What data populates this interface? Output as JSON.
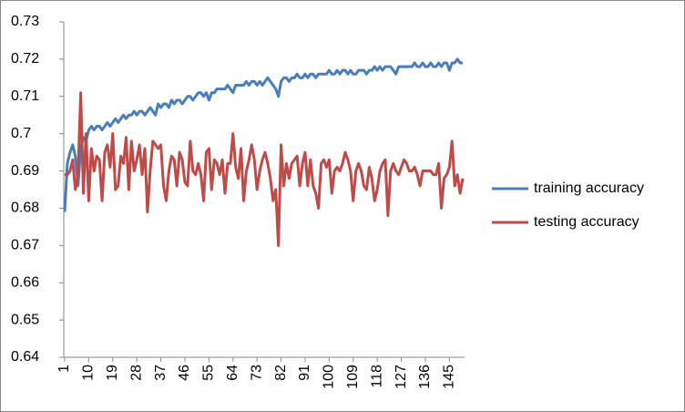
{
  "chart_data": {
    "type": "line",
    "categories": [
      1,
      null,
      null,
      null,
      null,
      null,
      null,
      null,
      null,
      10,
      null,
      null,
      null,
      null,
      null,
      null,
      null,
      null,
      19,
      null,
      null,
      null,
      null,
      null,
      null,
      null,
      null,
      28,
      null,
      null,
      null,
      null,
      null,
      null,
      null,
      null,
      37,
      null,
      null,
      null,
      null,
      null,
      null,
      null,
      null,
      46,
      null,
      null,
      null,
      null,
      null,
      null,
      null,
      null,
      55,
      null,
      null,
      null,
      null,
      null,
      null,
      null,
      null,
      64,
      null,
      null,
      null,
      null,
      null,
      null,
      null,
      null,
      73,
      null,
      null,
      null,
      null,
      null,
      null,
      null,
      null,
      82,
      null,
      null,
      null,
      null,
      null,
      null,
      null,
      null,
      91,
      null,
      null,
      null,
      null,
      null,
      null,
      null,
      null,
      100,
      null,
      null,
      null,
      null,
      null,
      null,
      null,
      null,
      109,
      null,
      null,
      null,
      null,
      null,
      null,
      null,
      null,
      118,
      null,
      null,
      null,
      null,
      null,
      null,
      null,
      null,
      127,
      null,
      null,
      null,
      null,
      null,
      null,
      null,
      null,
      136,
      null,
      null,
      null,
      null,
      null,
      null,
      null,
      null,
      145,
      null,
      null,
      null,
      null,
      null
    ],
    "series": [
      {
        "name": "training accuracy",
        "color": "#4a7ebb",
        "values": [
          0.679,
          0.692,
          0.695,
          0.697,
          0.694,
          0.686,
          0.696,
          0.699,
          0.698,
          0.701,
          0.702,
          0.701,
          0.702,
          0.702,
          0.701,
          0.702,
          0.703,
          0.702,
          0.703,
          0.704,
          0.703,
          0.704,
          0.705,
          0.704,
          0.705,
          0.705,
          0.706,
          0.705,
          0.706,
          0.706,
          0.705,
          0.706,
          0.707,
          0.706,
          0.705,
          0.708,
          0.707,
          0.708,
          0.708,
          0.707,
          0.709,
          0.708,
          0.709,
          0.709,
          0.708,
          0.709,
          0.71,
          0.71,
          0.709,
          0.71,
          0.711,
          0.711,
          0.71,
          0.711,
          0.709,
          0.711,
          0.711,
          0.712,
          0.712,
          0.712,
          0.712,
          0.713,
          0.712,
          0.711,
          0.713,
          0.713,
          0.713,
          0.713,
          0.714,
          0.713,
          0.714,
          0.714,
          0.713,
          0.714,
          0.713,
          0.714,
          0.715,
          0.714,
          0.713,
          0.712,
          0.71,
          0.714,
          0.715,
          0.715,
          0.714,
          0.715,
          0.715,
          0.716,
          0.715,
          0.715,
          0.716,
          0.715,
          0.716,
          0.716,
          0.715,
          0.716,
          0.716,
          0.716,
          0.716,
          0.717,
          0.716,
          0.716,
          0.717,
          0.716,
          0.717,
          0.717,
          0.716,
          0.717,
          0.716,
          0.716,
          0.717,
          0.717,
          0.717,
          0.716,
          0.717,
          0.717,
          0.718,
          0.717,
          0.718,
          0.717,
          0.718,
          0.718,
          0.718,
          0.717,
          0.716,
          0.718,
          0.718,
          0.718,
          0.718,
          0.718,
          0.718,
          0.719,
          0.718,
          0.718,
          0.719,
          0.718,
          0.718,
          0.719,
          0.718,
          0.718,
          0.719,
          0.718,
          0.719,
          0.719,
          0.717,
          0.719,
          0.719,
          0.72,
          0.719,
          0.719
        ]
      },
      {
        "name": "testing accuracy",
        "color": "#be4b48",
        "values": [
          0.689,
          0.689,
          0.69,
          0.693,
          0.685,
          0.689,
          0.711,
          0.684,
          0.7,
          0.682,
          0.696,
          0.69,
          0.694,
          0.693,
          0.682,
          0.695,
          0.697,
          0.691,
          0.7,
          0.685,
          0.686,
          0.694,
          0.692,
          0.699,
          0.685,
          0.698,
          0.69,
          0.693,
          0.697,
          0.689,
          0.696,
          0.679,
          0.69,
          0.698,
          0.697,
          0.696,
          0.697,
          0.686,
          0.682,
          0.69,
          0.694,
          0.693,
          0.686,
          0.695,
          0.693,
          0.687,
          0.686,
          0.698,
          0.69,
          0.689,
          0.692,
          0.689,
          0.682,
          0.695,
          0.696,
          0.685,
          0.693,
          0.692,
          0.689,
          0.693,
          0.684,
          0.692,
          0.692,
          0.7,
          0.691,
          0.688,
          0.696,
          0.682,
          0.69,
          0.693,
          0.697,
          0.693,
          0.685,
          0.69,
          0.693,
          0.695,
          0.692,
          0.688,
          0.682,
          0.685,
          0.67,
          0.697,
          0.686,
          0.692,
          0.688,
          0.692,
          0.693,
          0.694,
          0.686,
          0.692,
          0.695,
          0.686,
          0.693,
          0.686,
          0.684,
          0.68,
          0.692,
          0.693,
          0.691,
          0.693,
          0.684,
          0.69,
          0.691,
          0.69,
          0.692,
          0.695,
          0.693,
          0.69,
          0.682,
          0.69,
          0.692,
          0.69,
          0.686,
          0.685,
          0.691,
          0.688,
          0.682,
          0.685,
          0.69,
          0.692,
          0.693,
          0.678,
          0.69,
          0.692,
          0.69,
          0.689,
          0.691,
          0.693,
          0.692,
          0.69,
          0.69,
          0.691,
          0.689,
          0.686,
          0.69,
          0.69,
          0.69,
          0.69,
          0.689,
          0.689,
          0.692,
          0.68,
          0.688,
          0.689,
          0.691,
          0.698,
          0.686,
          0.689,
          0.684,
          0.688
        ]
      }
    ],
    "ylim": [
      0.64,
      0.73
    ],
    "yticks": [
      0.64,
      0.65,
      0.66,
      0.67,
      0.68,
      0.69,
      0.7,
      0.71,
      0.72,
      0.73
    ],
    "grid": false,
    "legend": "right"
  }
}
